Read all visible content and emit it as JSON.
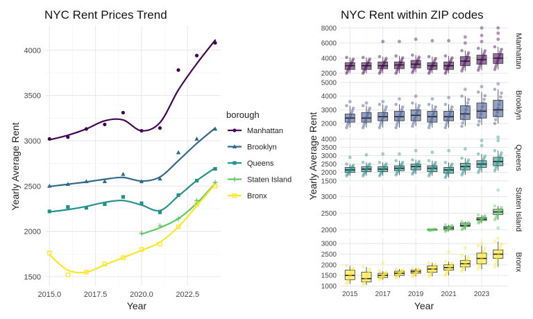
{
  "chart_data": [
    {
      "type": "line",
      "title": "NYC Rent Prices Trend",
      "xlabel": "Year",
      "ylabel": "Yearly Average Rent",
      "xlim": [
        2014.8,
        2024.3
      ],
      "ylim": [
        1400,
        4270
      ],
      "x_ticks": [
        2015,
        2017.5,
        2020,
        2022.5
      ],
      "x_tick_labels": [
        "2015.0",
        "2017.5",
        "2020.0",
        "2022.5"
      ],
      "y_ticks": [
        1500,
        2000,
        2500,
        3000,
        3500,
        4000
      ],
      "y_tick_labels": [
        "1500",
        "2000",
        "2500",
        "3000",
        "3500",
        "4000"
      ],
      "grid": true,
      "legend": {
        "title": "borough",
        "position": "right"
      },
      "series": [
        {
          "name": "Manhattan",
          "color": "#440154",
          "marker": "circle",
          "x": [
            2015,
            2016,
            2017,
            2018,
            2019,
            2020,
            2021,
            2022,
            2023,
            2024
          ],
          "points": [
            3020,
            3040,
            3130,
            3180,
            3310,
            3110,
            3140,
            3780,
            3940,
            4080
          ],
          "smooth": [
            3010,
            3060,
            3130,
            3220,
            3230,
            3110,
            3200,
            3560,
            3850,
            4110
          ]
        },
        {
          "name": "Brooklyn",
          "color": "#31688e",
          "marker": "triangle",
          "x": [
            2015,
            2016,
            2017,
            2018,
            2019,
            2020,
            2021,
            2022,
            2023,
            2024
          ],
          "points": [
            2500,
            2520,
            2550,
            2550,
            2630,
            2550,
            2580,
            2870,
            3020,
            3130
          ],
          "smooth": [
            2495,
            2520,
            2545,
            2575,
            2595,
            2555,
            2600,
            2780,
            2970,
            3140
          ]
        },
        {
          "name": "Queens",
          "color": "#21918c",
          "marker": "square",
          "x": [
            2015,
            2016,
            2017,
            2018,
            2019,
            2020,
            2021,
            2022,
            2023,
            2024
          ],
          "points": [
            2220,
            2270,
            2260,
            2300,
            2380,
            2310,
            2210,
            2400,
            2560,
            2690
          ],
          "smooth": [
            2215,
            2240,
            2275,
            2320,
            2340,
            2290,
            2230,
            2390,
            2560,
            2700
          ]
        },
        {
          "name": "Staten Island",
          "color": "#5ec962",
          "marker": "cross",
          "x": [
            2020,
            2021,
            2022,
            2023,
            2024
          ],
          "points": [
            1980,
            2060,
            2140,
            2340,
            2540
          ],
          "smooth": [
            1970,
            2040,
            2140,
            2310,
            2530
          ]
        },
        {
          "name": "Bronx",
          "color": "#fde725",
          "marker": "square-open",
          "x": [
            2015,
            2016,
            2017,
            2018,
            2019,
            2020,
            2021,
            2022,
            2023,
            2024
          ],
          "points": [
            1760,
            1520,
            1550,
            1640,
            1710,
            1800,
            1860,
            2050,
            2300,
            2500
          ],
          "smooth": [
            1740,
            1570,
            1550,
            1630,
            1710,
            1790,
            1880,
            2050,
            2280,
            2520
          ]
        }
      ]
    },
    {
      "type": "box",
      "title": "NYC Rent within ZIP codes",
      "xlabel": "Year",
      "ylabel": "Yearly Average Rent",
      "x_ticks": [
        2015,
        2017,
        2019,
        2021,
        2023
      ],
      "x_tick_labels": [
        "2015",
        "2017",
        "2019",
        "2021",
        "2023"
      ],
      "xlim": [
        2014.4,
        2024.6
      ],
      "facets": [
        {
          "name": "Manhattan",
          "color": "#440154",
          "ylim": [
            1600,
            8300
          ],
          "y_ticks": [
            2000,
            4000,
            6000,
            8000
          ],
          "y_tick_labels": [
            "2000",
            "4000",
            "6000",
            "8000"
          ],
          "years": [
            2015,
            2016,
            2017,
            2018,
            2019,
            2020,
            2021,
            2022,
            2023,
            2024
          ],
          "boxes": [
            {
              "min": 2000,
              "q1": 2500,
              "median": 3000,
              "q3": 3400,
              "max": 4100,
              "outliers": []
            },
            {
              "min": 2000,
              "q1": 2500,
              "median": 3000,
              "q3": 3400,
              "max": 4100,
              "outliers": []
            },
            {
              "min": 2000,
              "q1": 2600,
              "median": 3000,
              "q3": 3500,
              "max": 4200,
              "outliers": [
                6200
              ]
            },
            {
              "min": 2000,
              "q1": 2600,
              "median": 3100,
              "q3": 3500,
              "max": 4300,
              "outliers": [
                6200
              ]
            },
            {
              "min": 2100,
              "q1": 2700,
              "median": 3200,
              "q3": 3700,
              "max": 4400,
              "outliers": [
                6500
              ]
            },
            {
              "min": 2000,
              "q1": 2500,
              "median": 3000,
              "q3": 3400,
              "max": 4200,
              "outliers": [
                6300
              ]
            },
            {
              "min": 2000,
              "q1": 2500,
              "median": 3000,
              "q3": 3500,
              "max": 4300,
              "outliers": [
                6300
              ]
            },
            {
              "min": 2300,
              "q1": 3000,
              "median": 3600,
              "q3": 4200,
              "max": 5000,
              "outliers": [
                6000,
                6800
              ]
            },
            {
              "min": 2400,
              "q1": 3200,
              "median": 3800,
              "q3": 4400,
              "max": 5300,
              "outliers": [
                6200,
                7000,
                8000
              ]
            },
            {
              "min": 2500,
              "q1": 3300,
              "median": 4000,
              "q3": 4600,
              "max": 5500,
              "outliers": [
                6500,
                7300,
                8000
              ]
            }
          ]
        },
        {
          "name": "Brooklyn",
          "color": "#3b528b",
          "ylim": [
            1500,
            5200
          ],
          "y_ticks": [
            2000,
            3000,
            4000,
            5000
          ],
          "y_tick_labels": [
            "2000",
            "3000",
            "4000",
            "5000"
          ],
          "years": [
            2015,
            2016,
            2017,
            2018,
            2019,
            2020,
            2021,
            2022,
            2023,
            2024
          ],
          "boxes": [
            {
              "min": 1700,
              "q1": 2100,
              "median": 2400,
              "q3": 2700,
              "max": 3300,
              "outliers": [
                3600
              ]
            },
            {
              "min": 1700,
              "q1": 2100,
              "median": 2400,
              "q3": 2800,
              "max": 3300,
              "outliers": [
                3500
              ]
            },
            {
              "min": 1700,
              "q1": 2200,
              "median": 2500,
              "q3": 2800,
              "max": 3400,
              "outliers": [
                3600
              ]
            },
            {
              "min": 1700,
              "q1": 2200,
              "median": 2500,
              "q3": 2900,
              "max": 3400,
              "outliers": [
                3800
              ]
            },
            {
              "min": 1800,
              "q1": 2200,
              "median": 2600,
              "q3": 3000,
              "max": 3500,
              "outliers": [
                4000
              ]
            },
            {
              "min": 1700,
              "q1": 2100,
              "median": 2500,
              "q3": 2900,
              "max": 3400,
              "outliers": [
                3800
              ]
            },
            {
              "min": 1700,
              "q1": 2200,
              "median": 2500,
              "q3": 2900,
              "max": 3400,
              "outliers": [
                3900
              ]
            },
            {
              "min": 1800,
              "q1": 2300,
              "median": 2700,
              "q3": 3300,
              "max": 4000,
              "outliers": [
                4500
              ]
            },
            {
              "min": 1900,
              "q1": 2400,
              "median": 2900,
              "q3": 3500,
              "max": 4300,
              "outliers": [
                4700
              ]
            },
            {
              "min": 2000,
              "q1": 2500,
              "median": 3000,
              "q3": 3700,
              "max": 4500,
              "outliers": [
                4900
              ]
            }
          ]
        },
        {
          "name": "Queens",
          "color": "#21918c",
          "ylim": [
            1450,
            4300
          ],
          "y_ticks": [
            1500,
            2000,
            2500,
            3000,
            3500,
            4000
          ],
          "y_tick_labels": [
            "1500",
            "2000",
            "2500",
            "3000",
            "3500",
            "4000"
          ],
          "years": [
            2015,
            2016,
            2017,
            2018,
            2019,
            2020,
            2021,
            2022,
            2023,
            2024
          ],
          "boxes": [
            {
              "min": 1800,
              "q1": 2000,
              "median": 2150,
              "q3": 2300,
              "max": 2500,
              "outliers": [
                2900
              ]
            },
            {
              "min": 1800,
              "q1": 2050,
              "median": 2200,
              "q3": 2350,
              "max": 2600,
              "outliers": [
                3050
              ]
            },
            {
              "min": 1800,
              "q1": 2050,
              "median": 2200,
              "q3": 2350,
              "max": 2600,
              "outliers": [
                3100
              ]
            },
            {
              "min": 1850,
              "q1": 2100,
              "median": 2250,
              "q3": 2400,
              "max": 2700,
              "outliers": [
                3100
              ]
            },
            {
              "min": 1900,
              "q1": 2150,
              "median": 2350,
              "q3": 2500,
              "max": 2750,
              "outliers": [
                3300
              ]
            },
            {
              "min": 1800,
              "q1": 2050,
              "median": 2250,
              "q3": 2400,
              "max": 2700,
              "outliers": [
                3200
              ]
            },
            {
              "min": 1700,
              "q1": 1950,
              "median": 2150,
              "q3": 2300,
              "max": 2600,
              "outliers": [
                3300
              ]
            },
            {
              "min": 1850,
              "q1": 2150,
              "median": 2350,
              "q3": 2550,
              "max": 2850,
              "outliers": [
                3400
              ]
            },
            {
              "min": 2000,
              "q1": 2300,
              "median": 2500,
              "q3": 2700,
              "max": 3100,
              "outliers": [
                3600,
                3900
              ]
            },
            {
              "min": 2100,
              "q1": 2400,
              "median": 2650,
              "q3": 2900,
              "max": 3300,
              "outliers": [
                3900,
                4100
              ]
            }
          ]
        },
        {
          "name": "Staten Island",
          "color": "#5ec962",
          "ylim": [
            1880,
            3350
          ],
          "y_ticks": [
            2000,
            2500,
            3000
          ],
          "y_tick_labels": [
            "2000",
            "2500",
            "3000"
          ],
          "years": [
            2020,
            2021,
            2022,
            2023,
            2024
          ],
          "boxes": [
            {
              "min": 1980,
              "q1": 1990,
              "median": 2000,
              "q3": 2010,
              "max": 2020,
              "outliers": []
            },
            {
              "min": 1950,
              "q1": 2000,
              "median": 2050,
              "q3": 2100,
              "max": 2150,
              "outliers": []
            },
            {
              "min": 2000,
              "q1": 2100,
              "median": 2130,
              "q3": 2200,
              "max": 2250,
              "outliers": [
                2100
              ]
            },
            {
              "min": 2200,
              "q1": 2280,
              "median": 2320,
              "q3": 2370,
              "max": 2450,
              "outliers": []
            },
            {
              "min": 2300,
              "q1": 2460,
              "median": 2540,
              "q3": 2620,
              "max": 2720,
              "outliers": [
                2050,
                3200
              ]
            }
          ]
        },
        {
          "name": "Bronx",
          "color": "#fde725",
          "ylim": [
            950,
            3300
          ],
          "y_ticks": [
            1000,
            1500,
            2000,
            2500,
            3000
          ],
          "y_tick_labels": [
            "1000",
            "1500",
            "2000",
            "2500",
            "3000"
          ],
          "years": [
            2015,
            2016,
            2017,
            2018,
            2019,
            2020,
            2021,
            2022,
            2023,
            2024
          ],
          "boxes": [
            {
              "min": 1100,
              "q1": 1300,
              "median": 1500,
              "q3": 1750,
              "max": 1950,
              "outliers": []
            },
            {
              "min": 1050,
              "q1": 1200,
              "median": 1350,
              "q3": 1650,
              "max": 1900,
              "outliers": []
            },
            {
              "min": 1300,
              "q1": 1400,
              "median": 1500,
              "q3": 1600,
              "max": 1700,
              "outliers": [
                2100
              ]
            },
            {
              "min": 1400,
              "q1": 1500,
              "median": 1600,
              "q3": 1700,
              "max": 1800,
              "outliers": []
            },
            {
              "min": 1450,
              "q1": 1600,
              "median": 1680,
              "q3": 1750,
              "max": 1850,
              "outliers": []
            },
            {
              "min": 1450,
              "q1": 1650,
              "median": 1800,
              "q3": 1950,
              "max": 2100,
              "outliers": []
            },
            {
              "min": 1500,
              "q1": 1750,
              "median": 1870,
              "q3": 2000,
              "max": 2150,
              "outliers": [
                2600
              ]
            },
            {
              "min": 1700,
              "q1": 1900,
              "median": 2050,
              "q3": 2200,
              "max": 2450,
              "outliers": [
                2800
              ]
            },
            {
              "min": 1800,
              "q1": 2050,
              "median": 2300,
              "q3": 2550,
              "max": 2900,
              "outliers": [
                3000
              ]
            },
            {
              "min": 1900,
              "q1": 2300,
              "median": 2500,
              "q3": 2700,
              "max": 3100,
              "outliers": [
                3250
              ]
            }
          ]
        }
      ]
    }
  ]
}
